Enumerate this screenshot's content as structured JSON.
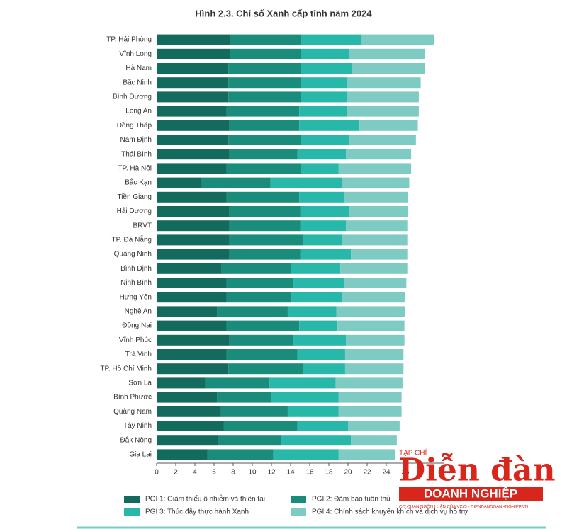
{
  "chart_data": {
    "type": "stacked-barh",
    "title": "Hình 2.3. Chỉ số Xanh cấp tỉnh năm 2024",
    "categories": [
      "TP. Hải Phòng",
      "Vĩnh Long",
      "Hà Nam",
      "Bắc Ninh",
      "Bình Dương",
      "Long An",
      "Đồng Tháp",
      "Nam Định",
      "Thái Bình",
      "TP. Hà Nội",
      "Bắc Kạn",
      "Tiền Giang",
      "Hải Dương",
      "BRVT",
      "TP. Đà Nẵng",
      "Quảng Ninh",
      "Bình Định",
      "Ninh Bình",
      "Hưng Yên",
      "Nghệ An",
      "Đồng Nai",
      "Vĩnh Phúc",
      "Trà Vinh",
      "TP. Hồ Chí Minh",
      "Sơn La",
      "Bình Phước",
      "Quảng Nam",
      "Tây Ninh",
      "Đắk Nông",
      "Gia Lai"
    ],
    "series": [
      {
        "name": "PGI 1: Giảm thiểu ô nhiễm và thiên tai",
        "color": "#136b5e",
        "values": [
          7.7,
          7.7,
          7.5,
          7.5,
          7.5,
          7.3,
          7.6,
          7.5,
          7.6,
          7.3,
          4.7,
          7.3,
          7.6,
          7.6,
          7.6,
          7.6,
          6.8,
          7.3,
          7.3,
          6.3,
          7.3,
          7.6,
          7.3,
          7.5,
          5.1,
          6.3,
          6.7,
          7.0,
          6.4,
          5.3
        ]
      },
      {
        "name": "PGI 2: Đảm bảo tuân thủ",
        "color": "#1a8c7c",
        "values": [
          7.4,
          7.4,
          7.6,
          7.6,
          7.6,
          7.6,
          7.3,
          7.6,
          7.1,
          7.8,
          7.2,
          7.6,
          7.4,
          7.4,
          7.7,
          7.4,
          7.2,
          7.0,
          6.8,
          7.4,
          7.6,
          6.7,
          7.4,
          7.8,
          6.7,
          5.7,
          7.0,
          7.7,
          6.6,
          6.9
        ]
      },
      {
        "name": "PGI 3: Thúc đẩy thực hành Xanh",
        "color": "#27b8aa",
        "values": [
          6.3,
          5.0,
          5.3,
          4.8,
          4.8,
          5.0,
          6.3,
          5.0,
          5.1,
          3.9,
          7.5,
          4.7,
          5.1,
          4.8,
          4.1,
          5.3,
          5.2,
          5.3,
          5.3,
          5.1,
          4.0,
          5.5,
          5.0,
          4.4,
          6.9,
          7.0,
          5.3,
          5.3,
          7.3,
          6.8
        ]
      },
      {
        "name": "PGI 4: Chính sách khuyến khích và dịch vụ hỗ trợ",
        "color": "#7ecbc4",
        "values": [
          7.6,
          7.9,
          7.6,
          7.7,
          7.5,
          7.5,
          6.1,
          7.0,
          6.8,
          7.6,
          7.0,
          6.7,
          6.2,
          6.4,
          6.8,
          5.9,
          7.0,
          6.5,
          6.6,
          7.2,
          7.0,
          6.1,
          6.1,
          6.1,
          7.0,
          6.6,
          6.6,
          5.4,
          4.8,
          5.9
        ]
      }
    ],
    "xlim": [
      0,
      30
    ],
    "xticks": [
      0,
      2,
      4,
      6,
      8,
      10,
      12,
      14,
      16,
      18,
      20,
      22,
      24,
      26
    ],
    "watermark": {
      "top": "TẠP CHÍ",
      "main": "Diễn đàn",
      "sub": "DOANH NGHIỆP",
      "url": "CƠ QUAN NGÔN LUẬN CỦA VCCI - DIENDANDOANHNGHIEP.VN"
    }
  }
}
